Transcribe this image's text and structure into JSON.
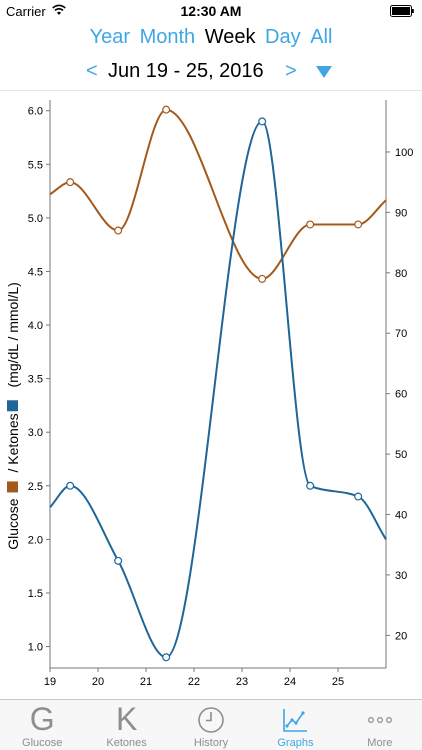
{
  "status_bar": {
    "carrier": "Carrier",
    "time": "12:30 AM"
  },
  "range_tabs": [
    {
      "label": "Year",
      "active": false
    },
    {
      "label": "Month",
      "active": false
    },
    {
      "label": "Week",
      "active": true
    },
    {
      "label": "Day",
      "active": false
    },
    {
      "label": "All",
      "active": false
    }
  ],
  "date_nav": {
    "prev": "<",
    "label": "Jun 19 - 25, 2016",
    "next": ">"
  },
  "colors": {
    "accent": "#3ea6e6",
    "glucose": "#a3591b",
    "ketones": "#1e6698"
  },
  "y_axis_title": {
    "part1": "Glucose",
    "part2": "/ Ketones",
    "part3": "(mg/dL / mmol/L)"
  },
  "chart_data": {
    "type": "line",
    "x_ticks": [
      "19",
      "20",
      "21",
      "22",
      "23",
      "24",
      "25"
    ],
    "x_range": [
      19,
      26
    ],
    "left_axis": {
      "range": [
        0.8,
        6.1
      ],
      "ticks": [
        "1.0",
        "1.5",
        "2.0",
        "2.5",
        "3.0",
        "3.5",
        "4.0",
        "4.5",
        "5.0",
        "5.5",
        "6.0"
      ]
    },
    "right_axis": {
      "range": [
        14.6,
        108.6
      ],
      "ticks": [
        "20",
        "30",
        "40",
        "50",
        "60",
        "70",
        "80",
        "90",
        "100"
      ]
    },
    "series": [
      {
        "axis": "right",
        "color": "#a3591b",
        "points": [
          [
            19.0,
            93
          ],
          [
            19.42,
            95
          ],
          [
            20.42,
            87
          ],
          [
            21.42,
            107
          ],
          [
            23.42,
            79
          ],
          [
            24.42,
            88
          ],
          [
            25.42,
            88
          ],
          [
            26.0,
            92
          ]
        ],
        "markers": [
          1,
          2,
          3,
          4,
          5,
          6
        ]
      },
      {
        "axis": "left",
        "color": "#1e6698",
        "points": [
          [
            19.0,
            2.3
          ],
          [
            19.42,
            2.5
          ],
          [
            20.42,
            1.8
          ],
          [
            21.42,
            0.9
          ],
          [
            23.42,
            5.9
          ],
          [
            24.42,
            2.5
          ],
          [
            25.42,
            2.4
          ],
          [
            26.0,
            2.0
          ]
        ],
        "markers": [
          1,
          2,
          3,
          4,
          5,
          6
        ]
      }
    ]
  },
  "tab_bar": [
    {
      "glyph": "G",
      "label": "Glucose",
      "active": false
    },
    {
      "glyph": "K",
      "label": "Ketones",
      "active": false
    },
    {
      "glyph": "",
      "label": "History",
      "icon": "clock-icon",
      "active": false
    },
    {
      "glyph": "",
      "label": "Graphs",
      "icon": "chart-icon",
      "active": true
    },
    {
      "glyph": "",
      "label": "More",
      "icon": "more-icon",
      "active": false
    }
  ]
}
